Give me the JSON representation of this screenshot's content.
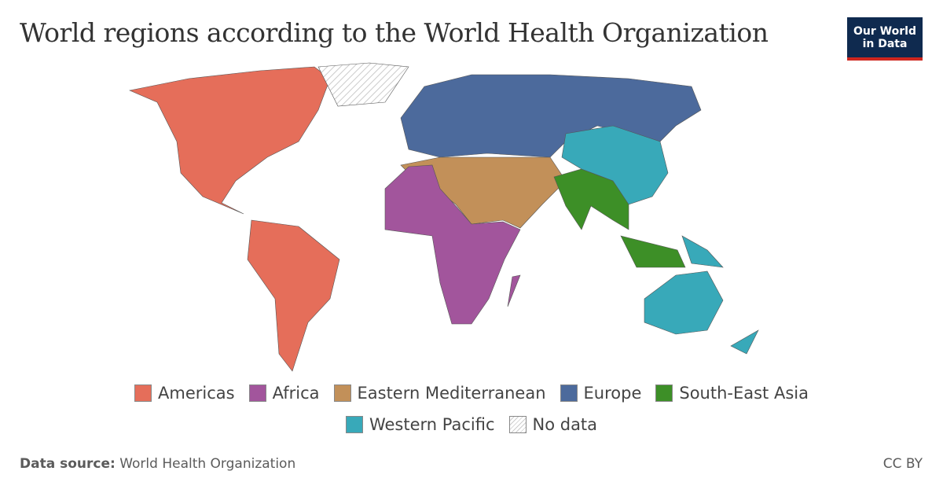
{
  "header": {
    "title": "World regions according to the World Health Organization",
    "logo": [
      "Our World",
      "in Data"
    ]
  },
  "legend": {
    "items": [
      {
        "label": "Americas",
        "color": "#e56e5a"
      },
      {
        "label": "Africa",
        "color": "#a2559c"
      },
      {
        "label": "Eastern Mediterranean",
        "color": "#c29059"
      },
      {
        "label": "Europe",
        "color": "#4c6a9c"
      },
      {
        "label": "South-East Asia",
        "color": "#3d8f27"
      },
      {
        "label": "Western Pacific",
        "color": "#38a9b9"
      },
      {
        "label": "No data",
        "color": "#d0d0d0",
        "hatched": true
      }
    ]
  },
  "footer": {
    "source_label": "Data source:",
    "source": "World Health Organization",
    "license": "CC BY"
  }
}
